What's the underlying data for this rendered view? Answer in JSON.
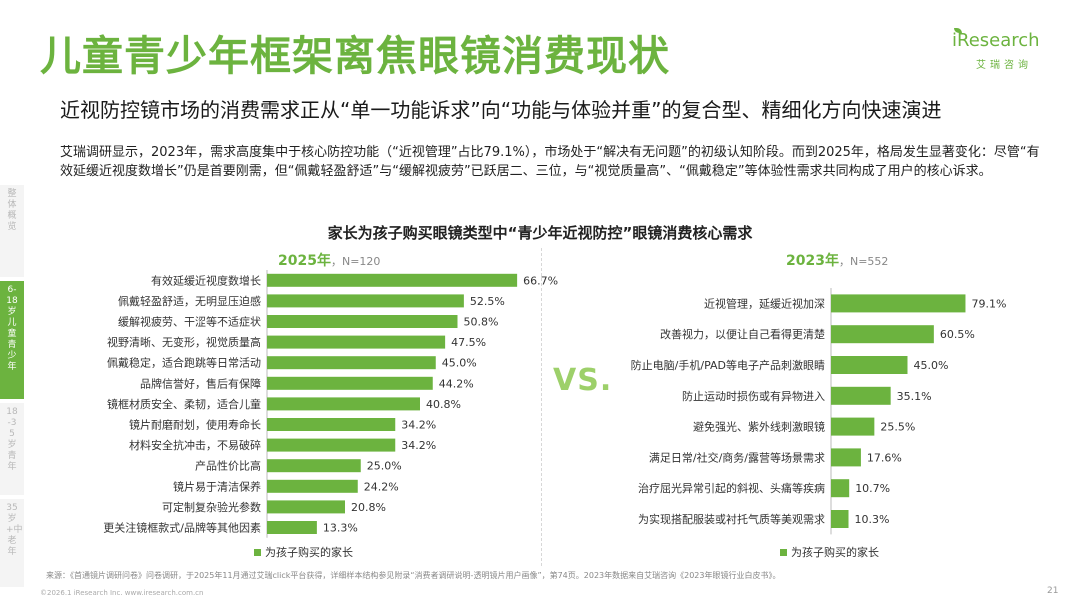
{
  "title": "儿童青少年框架离焦眼镜消费现状",
  "subtitle": "近视防控镜市场的消费需求正从“单一功能诉求”向“功能与体验并重”的复合型、精细化方向快速演进",
  "intro": "艾瑞调研显示，2023年，需求高度集中于核心防控功能（“近视管理”占比79.1%），市场处于“解决有无问题”的初级认知阶段。而到2025年，格局发生显著变化：尽管“有效延缓近视度数增长”仍是首要刚需，但“佩戴轻盈舒适”与“缓解视疲劳”已跃居二、三位，与“视觉质量高”、“佩戴稳定”等体验性需求共同构成了用户的核心诉求。",
  "logo": {
    "brand": "iResearch",
    "sub": "艾瑞咨询"
  },
  "side_nav": [
    {
      "label": "整体概览",
      "active": false
    },
    {
      "label": "6-18岁儿童青少年",
      "active": true
    },
    {
      "label": "18-35岁青年",
      "active": false
    },
    {
      "label": "35岁+中老年",
      "active": false
    }
  ],
  "chart_title": "家长为孩子购买眼镜类型中“青少年近视防控”眼镜消费核心需求",
  "vs": "VS.",
  "legend_label": "为孩子购买的家长",
  "colors": {
    "accent": "#6cb33f",
    "vs": "#9dd06a"
  },
  "chart_data": [
    {
      "type": "bar",
      "orientation": "horizontal",
      "year": "2025年",
      "sample": "N=120",
      "legend": [
        "为孩子购买的家长"
      ],
      "categories": [
        "有效延缓近视度数增长",
        "佩戴轻盈舒适，无明显压迫感",
        "缓解视疲劳、干涩等不适症状",
        "视野清晰、无变形，视觉质量高",
        "佩戴稳定，适合跑跳等日常活动",
        "品牌信誉好，售后有保障",
        "镜框材质安全、柔韧，适合儿童",
        "镜片耐磨耐划，使用寿命长",
        "材料安全抗冲击，不易破碎",
        "产品性价比高",
        "镜片易于清洁保养",
        "可定制复杂验光参数",
        "更关注镜框款式/品牌等其他因素"
      ],
      "values": [
        66.7,
        52.5,
        50.8,
        47.5,
        45.0,
        44.2,
        40.8,
        34.2,
        34.2,
        25.0,
        24.2,
        20.8,
        13.3
      ],
      "value_labels": [
        "66.7%",
        "52.5%",
        "50.8%",
        "47.5%",
        "45.0%",
        "44.2%",
        "40.8%",
        "34.2%",
        "34.2%",
        "25.0%",
        "24.2%",
        "20.8%",
        "13.3%"
      ],
      "unit": "%"
    },
    {
      "type": "bar",
      "orientation": "horizontal",
      "year": "2023年",
      "sample": "N=552",
      "legend": [
        "为孩子购买的家长"
      ],
      "categories": [
        "近视管理，延缓近视加深",
        "改善视力，以便让自己看得更清楚",
        "防止电脑/手机/PAD等电子产品刺激眼睛",
        "防止运动时损伤或有异物进入",
        "避免强光、紫外线刺激眼镜",
        "满足日常/社交/商务/露营等场景需求",
        "治疗屈光异常引起的斜视、头痛等疾病",
        "为实现搭配服装或衬托气质等美观需求"
      ],
      "values": [
        79.1,
        60.5,
        45.0,
        35.1,
        25.5,
        17.6,
        10.7,
        10.3
      ],
      "value_labels": [
        "79.1%",
        "60.5%",
        "45.0%",
        "35.1%",
        "25.5%",
        "17.6%",
        "10.7%",
        "10.3%"
      ],
      "unit": "%"
    }
  ],
  "footnote": "来源：《首通镜片调研问卷》问卷调研，于2025年11月通过艾瑞click平台获得，详细样本结构参见附录“消费者调研说明-透明镜片用户画像”，第74页。2023年数据来自艾瑞咨询《2023年眼镜行业白皮书》。",
  "copyright": "©2026.1 iResearch Inc. www.iresearch.com.cn",
  "page_number": "21"
}
